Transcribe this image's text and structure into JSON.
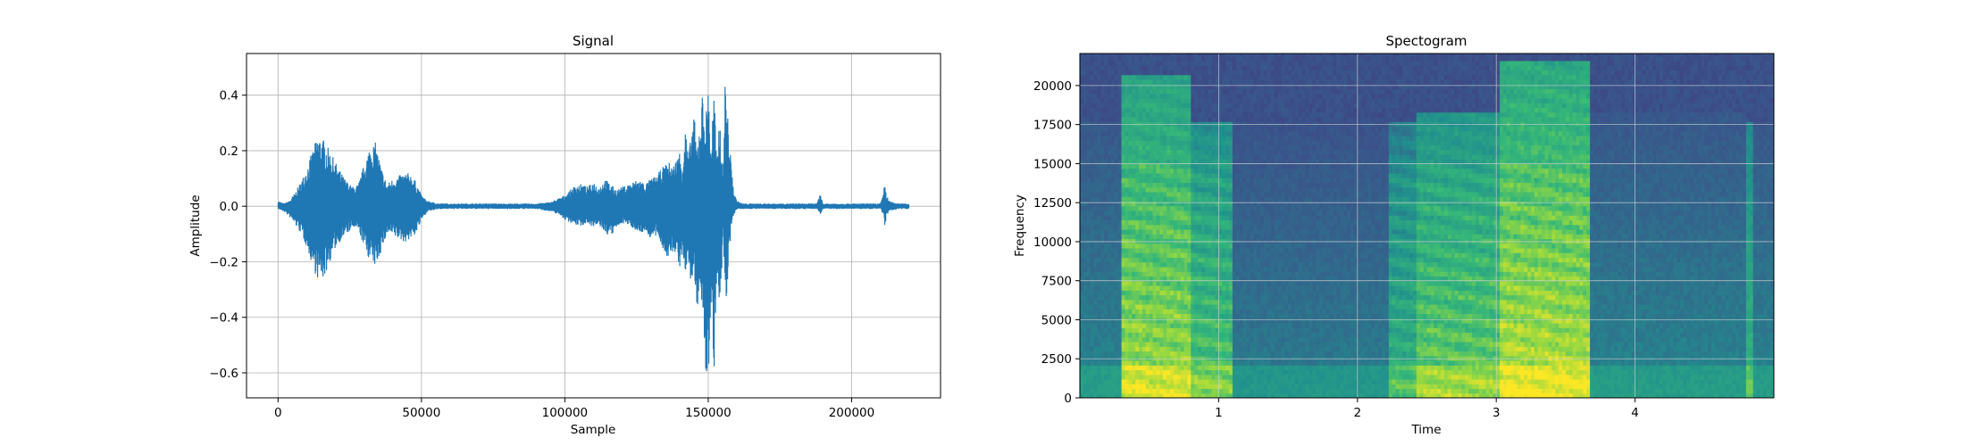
{
  "chart_data": [
    {
      "type": "line",
      "title": "Signal",
      "xlabel": "Sample",
      "ylabel": "Amplitude",
      "xlim": [
        -11000,
        231000
      ],
      "ylim": [
        -0.69,
        0.55
      ],
      "xticks": [
        0,
        50000,
        100000,
        150000,
        200000
      ],
      "xtick_labels": [
        "0",
        "50000",
        "100000",
        "150000",
        "200000"
      ],
      "yticks": [
        0.4,
        0.2,
        0.0,
        -0.2,
        -0.4,
        -0.6
      ],
      "ytick_labels": [
        "0.4",
        "0.2",
        "0.0",
        "−0.2",
        "−0.4",
        "−0.6"
      ],
      "grid": true,
      "line_color": "#1f77b4",
      "series": [
        {
          "x": [
            0,
            2000,
            4000,
            6000,
            8000,
            10000,
            12000,
            14000,
            16000,
            18000,
            20000,
            22000,
            24000,
            26000,
            28000,
            30000,
            32000,
            34000,
            36000,
            38000,
            40000,
            42000,
            44000,
            46000,
            48000,
            50000,
            52000,
            56000,
            60000,
            70000,
            80000,
            90000,
            95000,
            98000,
            100000,
            102000,
            104000,
            106000,
            108000,
            110000,
            112000,
            114000,
            116000,
            118000,
            120000,
            122000,
            124000,
            126000,
            128000,
            130000,
            132000,
            134000,
            136000,
            138000,
            140000,
            141000,
            142000,
            143000,
            144000,
            145000,
            146000,
            147000,
            148000,
            149000,
            150000,
            151000,
            152000,
            153000,
            154000,
            155000,
            156000,
            157000,
            158000,
            159000,
            160000,
            162000,
            166000,
            170000,
            180000,
            188000,
            189000,
            190000,
            200000,
            210000,
            211000,
            211500,
            212000,
            213000,
            216000,
            220000
          ],
          "envelope_max": [
            0.02,
            0.01,
            0.02,
            0.05,
            0.09,
            0.14,
            0.2,
            0.26,
            0.24,
            0.2,
            0.16,
            0.12,
            0.09,
            0.07,
            0.08,
            0.15,
            0.22,
            0.23,
            0.14,
            0.08,
            0.1,
            0.11,
            0.12,
            0.12,
            0.09,
            0.04,
            0.02,
            0.01,
            0.01,
            0.01,
            0.01,
            0.01,
            0.015,
            0.03,
            0.04,
            0.06,
            0.08,
            0.08,
            0.07,
            0.09,
            0.07,
            0.1,
            0.08,
            0.06,
            0.07,
            0.08,
            0.09,
            0.1,
            0.08,
            0.1,
            0.11,
            0.14,
            0.16,
            0.15,
            0.2,
            0.15,
            0.3,
            0.18,
            0.25,
            0.35,
            0.2,
            0.31,
            0.41,
            0.3,
            0.45,
            0.2,
            0.44,
            0.15,
            0.35,
            0.1,
            0.49,
            0.3,
            0.15,
            0.05,
            0.02,
            0.01,
            0.01,
            0.01,
            0.01,
            0.01,
            0.05,
            0.01,
            0.01,
            0.01,
            0.04,
            0.09,
            0.05,
            0.02,
            0.01,
            0.01
          ],
          "envelope_min": [
            -0.01,
            -0.02,
            -0.04,
            -0.07,
            -0.1,
            -0.15,
            -0.22,
            -0.27,
            -0.26,
            -0.2,
            -0.15,
            -0.12,
            -0.1,
            -0.08,
            -0.09,
            -0.15,
            -0.2,
            -0.22,
            -0.16,
            -0.1,
            -0.11,
            -0.12,
            -0.13,
            -0.12,
            -0.1,
            -0.05,
            -0.02,
            -0.01,
            -0.01,
            -0.01,
            -0.01,
            -0.01,
            -0.02,
            -0.03,
            -0.05,
            -0.06,
            -0.07,
            -0.07,
            -0.06,
            -0.08,
            -0.07,
            -0.1,
            -0.11,
            -0.08,
            -0.06,
            -0.07,
            -0.08,
            -0.1,
            -0.09,
            -0.12,
            -0.11,
            -0.15,
            -0.2,
            -0.16,
            -0.22,
            -0.18,
            -0.25,
            -0.2,
            -0.3,
            -0.23,
            -0.4,
            -0.25,
            -0.45,
            -0.62,
            -0.63,
            -0.35,
            -0.6,
            -0.25,
            -0.5,
            -0.1,
            -0.4,
            -0.2,
            -0.08,
            -0.03,
            -0.01,
            -0.01,
            -0.01,
            -0.01,
            -0.01,
            -0.01,
            -0.03,
            -0.01,
            -0.01,
            -0.01,
            -0.03,
            -0.08,
            -0.04,
            -0.02,
            -0.01,
            -0.01
          ]
        }
      ]
    },
    {
      "type": "heatmap",
      "title": "Spectogram",
      "xlabel": "Time",
      "ylabel": "Frequency",
      "xlim": [
        0,
        5
      ],
      "ylim": [
        0,
        22050
      ],
      "xticks": [
        1,
        2,
        3,
        4
      ],
      "xtick_labels": [
        "1",
        "2",
        "3",
        "4"
      ],
      "yticks": [
        0,
        2500,
        5000,
        7500,
        10000,
        12500,
        15000,
        17500,
        20000
      ],
      "ytick_labels": [
        "0",
        "2500",
        "5000",
        "7500",
        "10000",
        "12500",
        "15000",
        "17500",
        "20000"
      ],
      "grid": true,
      "colormap": "viridis",
      "colors": {
        "low": "#2e5b8c",
        "mid": "#21908d",
        "high": "#5ec962",
        "peak": "#dde318"
      },
      "segments": [
        {
          "start": 0.0,
          "end": 0.3,
          "intensity": 0.45,
          "fmax": 17500,
          "harmonics": false
        },
        {
          "start": 0.3,
          "end": 0.8,
          "intensity": 0.85,
          "fmax": 20500,
          "harmonics": true
        },
        {
          "start": 0.8,
          "end": 1.1,
          "intensity": 0.7,
          "fmax": 17500,
          "harmonics": true
        },
        {
          "start": 1.1,
          "end": 2.2,
          "intensity": 0.42,
          "fmax": 17500,
          "harmonics": false
        },
        {
          "start": 2.2,
          "end": 2.4,
          "intensity": 0.6,
          "fmax": 17500,
          "harmonics": true
        },
        {
          "start": 2.4,
          "end": 3.0,
          "intensity": 0.75,
          "fmax": 18000,
          "harmonics": true
        },
        {
          "start": 3.0,
          "end": 3.65,
          "intensity": 0.9,
          "fmax": 21500,
          "harmonics": true
        },
        {
          "start": 3.65,
          "end": 4.8,
          "intensity": 0.45,
          "fmax": 18000,
          "harmonics": false
        },
        {
          "start": 4.8,
          "end": 4.85,
          "intensity": 0.7,
          "fmax": 17500,
          "harmonics": false
        },
        {
          "start": 4.85,
          "end": 5.0,
          "intensity": 0.45,
          "fmax": 17500,
          "harmonics": false
        }
      ]
    }
  ]
}
